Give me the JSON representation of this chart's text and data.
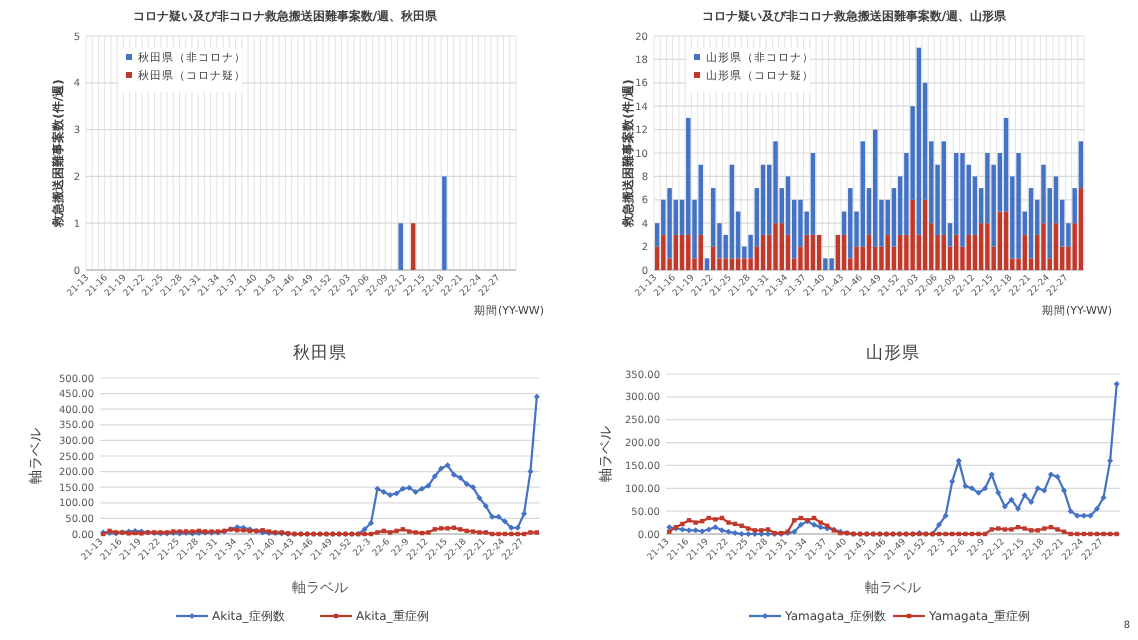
{
  "chart_data": [
    {
      "type": "bar",
      "title": "コロナ疑い及び非コロナ救急搬送困難事案数/週、秋田県",
      "xlabel": "期間(YY-WW)",
      "ylabel": "救急搬送困難事案数(件/週)",
      "stacked": true,
      "grid": true,
      "legend": "top left",
      "ylim": [
        0,
        5
      ],
      "yticks": [
        0,
        1,
        2,
        3,
        4,
        5
      ],
      "categories": [
        "21-13",
        null,
        null,
        "21-16",
        null,
        null,
        "21-19",
        null,
        null,
        "21-22",
        null,
        null,
        "21-25",
        null,
        null,
        "21-28",
        null,
        null,
        "21-31",
        null,
        null,
        "21-34",
        null,
        null,
        "21-37",
        null,
        null,
        "21-40",
        null,
        null,
        "21-43",
        null,
        null,
        "21-46",
        null,
        null,
        "21-49",
        null,
        null,
        "21-52",
        null,
        null,
        "22-03",
        null,
        null,
        "22-06",
        null,
        null,
        "22-09",
        null,
        null,
        "22-12",
        null,
        null,
        "22-15",
        null,
        null,
        "22-18",
        null,
        null,
        "22-21",
        null,
        null,
        "22-24",
        null,
        null,
        "22-27",
        null,
        null
      ],
      "series": [
        {
          "name": "秋田県（コロナ疑）",
          "color": "#c0392b",
          "values": [
            0,
            0,
            0,
            0,
            0,
            0,
            0,
            0,
            0,
            0,
            0,
            0,
            0,
            0,
            0,
            0,
            0,
            0,
            0,
            0,
            0,
            0,
            0,
            0,
            0,
            0,
            0,
            0,
            0,
            0,
            0,
            0,
            0,
            0,
            0,
            0,
            0,
            0,
            0,
            0,
            0,
            0,
            0,
            0,
            0,
            0,
            0,
            0,
            0,
            0,
            0,
            0,
            1,
            0,
            0,
            0,
            0,
            0,
            0,
            0,
            0,
            0,
            0,
            0,
            0,
            0,
            0,
            0,
            0
          ]
        },
        {
          "name": "秋田県（非コロナ）",
          "color": "#4472c4",
          "values": [
            0,
            0,
            0,
            0,
            0,
            0,
            0,
            0,
            0,
            0,
            0,
            0,
            0,
            0,
            0,
            0,
            0,
            0,
            0,
            0,
            0,
            0,
            0,
            0,
            0,
            0,
            0,
            0,
            0,
            0,
            0,
            0,
            0,
            0,
            0,
            0,
            0,
            0,
            0,
            0,
            0,
            0,
            0,
            0,
            0,
            0,
            0,
            0,
            0,
            0,
            1,
            0,
            0,
            0,
            0,
            0,
            0,
            2,
            0,
            0,
            0,
            0,
            0,
            0,
            0,
            0,
            0,
            0,
            0
          ]
        }
      ]
    },
    {
      "type": "bar",
      "title": "コロナ疑い及び非コロナ救急搬送困難事案数/週、山形県",
      "xlabel": "期間(YY-WW)",
      "ylabel": "救急搬送困難事案数(件/週)",
      "stacked": true,
      "grid": true,
      "legend": "top left",
      "ylim": [
        0,
        20
      ],
      "yticks": [
        0,
        2,
        4,
        6,
        8,
        10,
        12,
        14,
        16,
        18,
        20
      ],
      "categories": [
        "21-13",
        null,
        null,
        "21-16",
        null,
        null,
        "21-19",
        null,
        null,
        "21-22",
        null,
        null,
        "21-25",
        null,
        null,
        "21-28",
        null,
        null,
        "21-31",
        null,
        null,
        "21-34",
        null,
        null,
        "21-37",
        null,
        null,
        "21-40",
        null,
        null,
        "21-43",
        null,
        null,
        "21-46",
        null,
        null,
        "21-49",
        null,
        null,
        "21-52",
        null,
        null,
        "22-03",
        null,
        null,
        "22-06",
        null,
        null,
        "22-09",
        null,
        null,
        "22-12",
        null,
        null,
        "22-15",
        null,
        null,
        "22-18",
        null,
        null,
        "22-21",
        null,
        null,
        "22-24",
        null,
        null,
        "22-27",
        null,
        null
      ],
      "series": [
        {
          "name": "山形県（コロナ疑）",
          "color": "#c0392b",
          "values": [
            2,
            3,
            1,
            3,
            3,
            3,
            1,
            3,
            0,
            2,
            1,
            1,
            1,
            1,
            1,
            1,
            2,
            3,
            3,
            4,
            4,
            3,
            1,
            2,
            3,
            3,
            3,
            0,
            0,
            3,
            3,
            1,
            2,
            2,
            3,
            2,
            2,
            3,
            2,
            3,
            3,
            6,
            3,
            6,
            4,
            3,
            3,
            2,
            3,
            2,
            3,
            3,
            4,
            4,
            2,
            5,
            5,
            1,
            1,
            3,
            1,
            3,
            4,
            1,
            4,
            2,
            2,
            4,
            7
          ]
        },
        {
          "name": "山形県（非コロナ）",
          "color": "#4472c4",
          "values": [
            2,
            3,
            6,
            3,
            3,
            10,
            5,
            6,
            1,
            5,
            3,
            2,
            8,
            4,
            1,
            2,
            5,
            6,
            6,
            7,
            3,
            5,
            5,
            4,
            2,
            7,
            0,
            1,
            1,
            0,
            2,
            6,
            3,
            9,
            4,
            10,
            4,
            3,
            5,
            5,
            7,
            8,
            16,
            10,
            7,
            6,
            8,
            2,
            7,
            8,
            6,
            5,
            3,
            6,
            7,
            5,
            8,
            7,
            9,
            2,
            6,
            3,
            5,
            6,
            4,
            4,
            2,
            3,
            4
          ]
        }
      ]
    },
    {
      "type": "line",
      "title": "秋田県",
      "xlabel": "軸ラベル",
      "ylabel": "軸ラベル",
      "grid": "y",
      "legend": "bottom",
      "ylim": [
        0,
        500
      ],
      "yticks": [
        {
          "value": 0,
          "label": "0.00"
        },
        {
          "value": 50,
          "label": "50.00"
        },
        {
          "value": 100,
          "label": "100.00"
        },
        {
          "value": 150,
          "label": "150.00"
        },
        {
          "value": 200,
          "label": "200.00"
        },
        {
          "value": 250,
          "label": "250.00"
        },
        {
          "value": 300,
          "label": "300.00"
        },
        {
          "value": 350,
          "label": "350.00"
        },
        {
          "value": 400,
          "label": "400.00"
        },
        {
          "value": 450,
          "label": "450.00"
        },
        {
          "value": 500,
          "label": "500.00"
        }
      ],
      "categories": [
        "21-13",
        null,
        null,
        "21-16",
        null,
        null,
        "21-19",
        null,
        null,
        "21-22",
        null,
        null,
        "21-25",
        null,
        null,
        "21-28",
        null,
        null,
        "21-31",
        null,
        null,
        "21-34",
        null,
        null,
        "21-37",
        null,
        null,
        "21-40",
        null,
        null,
        "21-43",
        null,
        null,
        "21-46",
        null,
        null,
        "21-49",
        null,
        null,
        "21-52",
        null,
        null,
        "22-3",
        null,
        null,
        "22-6",
        null,
        null,
        "22-9",
        null,
        null,
        "22-12",
        null,
        null,
        "22-15",
        null,
        null,
        "22-18",
        null,
        null,
        "22-21",
        null,
        null,
        "22-24",
        null,
        null,
        "22-27",
        null,
        null
      ],
      "series": [
        {
          "name": "Akita_症例数",
          "color": "#4472c4",
          "marker": "diamond",
          "values": [
            5,
            3,
            2,
            5,
            8,
            10,
            8,
            5,
            3,
            2,
            2,
            3,
            2,
            3,
            2,
            3,
            4,
            4,
            5,
            8,
            15,
            22,
            20,
            15,
            10,
            5,
            3,
            3,
            2,
            0,
            0,
            0,
            0,
            0,
            0,
            0,
            0,
            0,
            0,
            0,
            0,
            15,
            35,
            145,
            135,
            125,
            130,
            145,
            148,
            135,
            145,
            155,
            185,
            210,
            220,
            190,
            180,
            160,
            150,
            115,
            90,
            55,
            55,
            40,
            20,
            20,
            65,
            200,
            440
          ]
        },
        {
          "name": "Akita_重症例",
          "color": "#c0392b",
          "marker": "square",
          "values": [
            0,
            10,
            5,
            5,
            2,
            3,
            2,
            5,
            5,
            5,
            5,
            8,
            8,
            8,
            8,
            10,
            8,
            8,
            8,
            10,
            15,
            12,
            12,
            10,
            10,
            12,
            8,
            5,
            5,
            2,
            0,
            0,
            0,
            0,
            0,
            0,
            0,
            0,
            0,
            0,
            0,
            0,
            0,
            5,
            10,
            5,
            10,
            15,
            8,
            5,
            3,
            5,
            15,
            18,
            18,
            20,
            15,
            10,
            8,
            5,
            5,
            0,
            0,
            0,
            0,
            0,
            0,
            5,
            5
          ]
        }
      ]
    },
    {
      "type": "line",
      "title": "山形県",
      "xlabel": "軸ラベル",
      "ylabel": "軸ラベル",
      "grid": "y",
      "legend": "bottom",
      "ylim": [
        0,
        350
      ],
      "annotations": [
        "8"
      ],
      "yticks": [
        {
          "value": 0,
          "label": "0.00"
        },
        {
          "value": 50,
          "label": "50.00"
        },
        {
          "value": 100,
          "label": "100.00"
        },
        {
          "value": 150,
          "label": "150.00"
        },
        {
          "value": 200,
          "label": "200.00"
        },
        {
          "value": 250,
          "label": "250.00"
        },
        {
          "value": 300,
          "label": "300.00"
        },
        {
          "value": 350,
          "label": "350.00"
        }
      ],
      "categories": [
        "21-13",
        null,
        null,
        "21-16",
        null,
        null,
        "21-19",
        null,
        null,
        "21-22",
        null,
        null,
        "21-25",
        null,
        null,
        "21-28",
        null,
        null,
        "21-31",
        null,
        null,
        "21-34",
        null,
        null,
        "21-37",
        null,
        null,
        "21-40",
        null,
        null,
        "21-43",
        null,
        null,
        "21-46",
        null,
        null,
        "21-49",
        null,
        null,
        "21-52",
        null,
        null,
        "22-3",
        null,
        null,
        "22-6",
        null,
        null,
        "22-9",
        null,
        null,
        "22-12",
        null,
        null,
        "22-15",
        null,
        null,
        "22-18",
        null,
        null,
        "22-21",
        null,
        null,
        "22-24",
        null,
        null,
        "22-27",
        null,
        null
      ],
      "series": [
        {
          "name": "Yamagata_症例数",
          "color": "#4472c4",
          "marker": "diamond",
          "values": [
            15,
            12,
            10,
            8,
            8,
            6,
            10,
            15,
            8,
            5,
            2,
            0,
            0,
            0,
            0,
            0,
            0,
            0,
            2,
            5,
            20,
            28,
            20,
            15,
            12,
            10,
            5,
            2,
            0,
            0,
            0,
            0,
            0,
            0,
            0,
            0,
            0,
            0,
            2,
            0,
            0,
            20,
            40,
            115,
            160,
            105,
            100,
            90,
            100,
            130,
            90,
            60,
            75,
            55,
            85,
            70,
            100,
            95,
            130,
            125,
            95,
            50,
            40,
            40,
            40,
            55,
            80,
            160,
            328
          ]
        },
        {
          "name": "Yamagata_重症例",
          "color": "#c0392b",
          "marker": "square",
          "values": [
            5,
            15,
            22,
            30,
            25,
            28,
            35,
            32,
            35,
            25,
            22,
            18,
            12,
            8,
            8,
            10,
            2,
            2,
            5,
            30,
            35,
            30,
            35,
            25,
            18,
            8,
            2,
            2,
            0,
            0,
            0,
            0,
            0,
            0,
            0,
            0,
            0,
            0,
            0,
            0,
            0,
            0,
            0,
            0,
            0,
            0,
            0,
            0,
            0,
            10,
            12,
            10,
            10,
            15,
            12,
            8,
            8,
            12,
            15,
            10,
            5,
            0,
            0,
            0,
            0,
            0,
            0,
            0,
            0
          ]
        }
      ]
    }
  ]
}
